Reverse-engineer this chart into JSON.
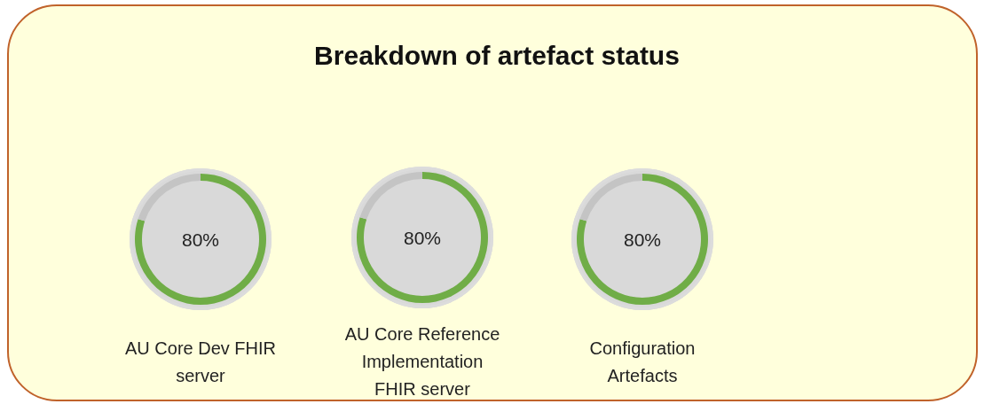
{
  "chart_data": [
    {
      "type": "donut",
      "title": "Breakdown of artefact status",
      "xlabel": "AU Core Dev FHIR server",
      "categories": [
        null,
        null
      ],
      "values": [
        80,
        20
      ],
      "colors": [
        "#70ad47",
        "#c4c4c4"
      ],
      "value_labels": [
        "80%",
        null
      ]
    },
    {
      "type": "donut",
      "xlabel": "AU Core Reference Implementation FHIR server",
      "categories": [
        null,
        null
      ],
      "values": [
        80,
        20
      ],
      "colors": [
        "#70ad47",
        "#c4c4c4"
      ],
      "value_labels": [
        "80%",
        null
      ]
    },
    {
      "type": "donut",
      "xlabel": "Configuration Artefacts",
      "categories": [
        null,
        null
      ],
      "values": [
        80,
        20
      ],
      "colors": [
        "#70ad47",
        "#c4c4c4"
      ],
      "value_labels": [
        "80%",
        null
      ]
    }
  ]
}
